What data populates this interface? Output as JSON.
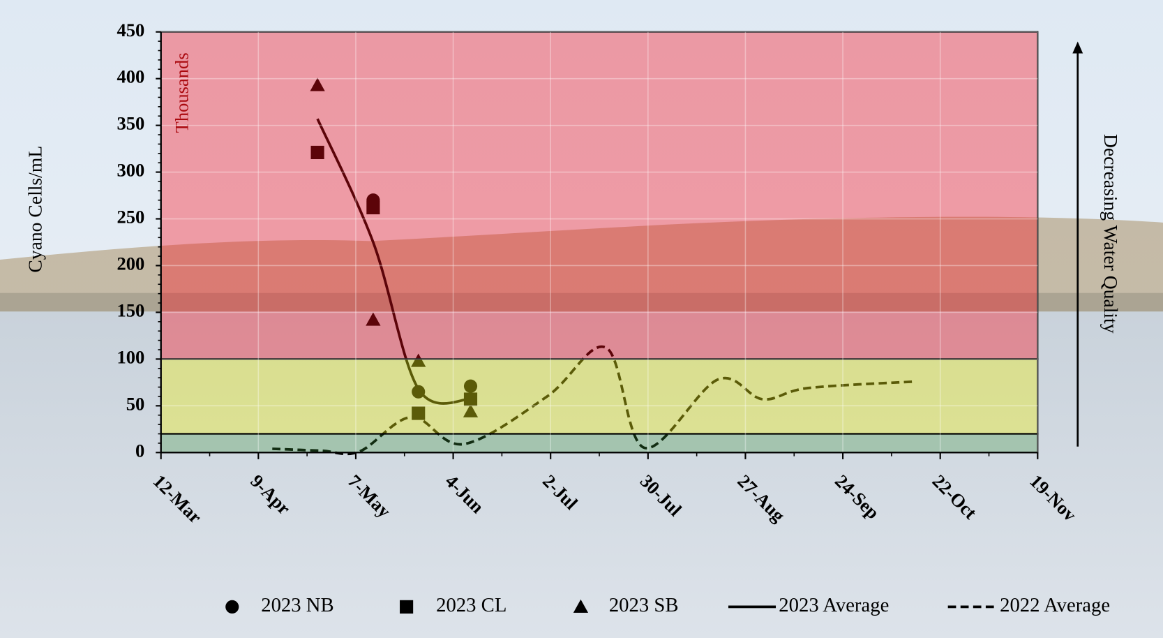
{
  "chart_data": {
    "type": "scatter",
    "ylabel": "Cyano Cells/mL",
    "annotations": [
      "Thousands",
      "Decreasing Water Quality"
    ],
    "xlim": [
      "12-Mar",
      "19-Nov"
    ],
    "xticks": [
      "12-Mar",
      "9-Apr",
      "7-May",
      "4-Jun",
      "2-Jul",
      "30-Jul",
      "27-Aug",
      "24-Sep",
      "22-Oct",
      "19-Nov"
    ],
    "ylim": [
      0,
      450
    ],
    "yticks": [
      0,
      50,
      100,
      150,
      200,
      250,
      300,
      350,
      400,
      450
    ],
    "grid": true,
    "legend": "bottom",
    "bands": [
      {
        "from": 100,
        "to": 450,
        "color": "rgba(255,10,25,0.36)"
      },
      {
        "from": 20,
        "to": 100,
        "color": "rgba(240,240,20,0.38)"
      },
      {
        "from": 0,
        "to": 20,
        "color": "rgba(60,150,60,0.30)"
      }
    ],
    "series": [
      {
        "name": "2023 NB",
        "color": "#000000",
        "marker": "circle",
        "x": [
          "12-May",
          "25-May",
          "9-Jun"
        ],
        "values": [
          270,
          65,
          71
        ]
      },
      {
        "name": "2023 CL",
        "color": "#000000",
        "marker": "square",
        "x": [
          "26-Apr",
          "12-May",
          "25-May",
          "9-Jun"
        ],
        "values": [
          321,
          262,
          42,
          57
        ]
      },
      {
        "name": "2023 SB",
        "color": "#000000",
        "marker": "triangle",
        "x": [
          "26-Apr",
          "12-May",
          "25-May",
          "9-Jun"
        ],
        "values": [
          393,
          142,
          98,
          44
        ]
      },
      {
        "name": "2023 Average",
        "color": "#000000",
        "line": "solid",
        "x": [
          "26-Apr",
          "12-May",
          "25-May",
          "9-Jun"
        ],
        "values": [
          357,
          225,
          68,
          57
        ]
      },
      {
        "name": "2022 Average",
        "color": "#000000",
        "line": "dashed",
        "x": [
          "13-Apr",
          "27-Apr",
          "8-May",
          "23-May",
          "7-Jun",
          "1-Jul",
          "18-Jul",
          "29-Jul",
          "19-Aug",
          "1-Sep",
          "14-Sep",
          "15-Oct"
        ],
        "values": [
          4,
          2,
          1,
          38,
          9,
          60,
          112,
          5,
          78,
          57,
          69,
          76
        ]
      }
    ]
  }
}
